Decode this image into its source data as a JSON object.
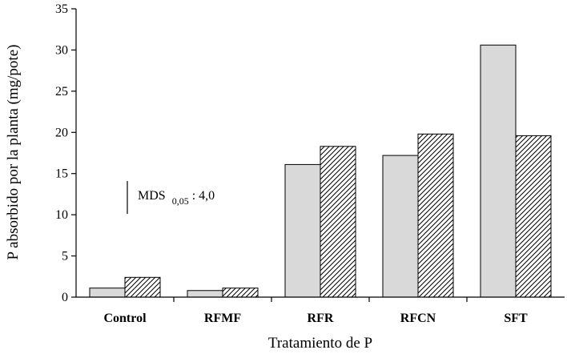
{
  "chart_data": {
    "type": "bar",
    "title": "",
    "xlabel": "Tratamiento de P",
    "ylabel": "P absorbido por la planta (mg/pote)",
    "ylim": [
      0,
      35
    ],
    "yticks": [
      0,
      5,
      10,
      15,
      20,
      25,
      30,
      35
    ],
    "grid": false,
    "categories": [
      "Control",
      "RFMF",
      "RFR",
      "RFCN",
      "SFT"
    ],
    "series": [
      {
        "values": [
          1.1,
          0.8,
          16.1,
          17.2,
          30.6
        ],
        "color": "#d9d9d9",
        "pattern": "solid"
      },
      {
        "values": [
          2.4,
          1.1,
          18.3,
          19.8,
          19.6
        ],
        "color": "#ffffff",
        "pattern": "diagonal-hatch"
      }
    ],
    "annotation": {
      "label": "MDS",
      "subscript": "0,05",
      "value": ": 4,0",
      "bar_value": 4.0
    }
  }
}
